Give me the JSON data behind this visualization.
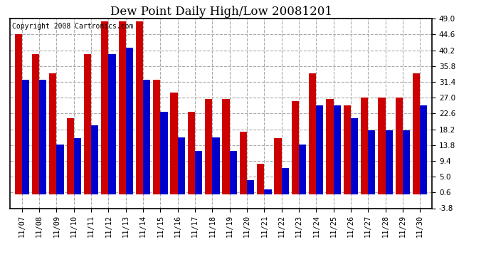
{
  "title": "Dew Point Daily High/Low 20081201",
  "copyright": "Copyright 2008 Cartronics.com",
  "dates": [
    "11/07",
    "11/08",
    "11/09",
    "11/10",
    "11/11",
    "11/12",
    "11/13",
    "11/14",
    "11/15",
    "11/16",
    "11/17",
    "11/18",
    "11/19",
    "11/20",
    "11/21",
    "11/22",
    "11/23",
    "11/24",
    "11/25",
    "11/26",
    "11/27",
    "11/28",
    "11/29",
    "11/30"
  ],
  "highs": [
    44.6,
    39.2,
    33.8,
    21.2,
    39.2,
    48.2,
    48.2,
    48.2,
    32.0,
    28.4,
    23.0,
    26.6,
    26.6,
    17.6,
    8.6,
    15.8,
    26.0,
    33.8,
    26.6,
    24.8,
    27.0,
    27.0,
    27.0,
    33.8
  ],
  "lows": [
    32.0,
    32.0,
    14.0,
    15.8,
    19.4,
    39.2,
    41.0,
    32.0,
    23.0,
    16.0,
    12.2,
    16.0,
    12.2,
    4.0,
    1.4,
    7.4,
    14.0,
    24.8,
    24.8,
    21.2,
    18.0,
    18.0,
    18.0,
    24.8
  ],
  "high_color": "#cc0000",
  "low_color": "#0000cc",
  "bg_color": "#ffffff",
  "grid_color": "#aaaaaa",
  "yticks": [
    -3.8,
    0.6,
    5.0,
    9.4,
    13.8,
    18.2,
    22.6,
    27.0,
    31.4,
    35.8,
    40.2,
    44.6,
    49.0
  ],
  "ymin": -3.8,
  "ymax": 49.0,
  "bar_width": 0.42,
  "title_fontsize": 12,
  "tick_fontsize": 7.5,
  "copyright_fontsize": 7
}
